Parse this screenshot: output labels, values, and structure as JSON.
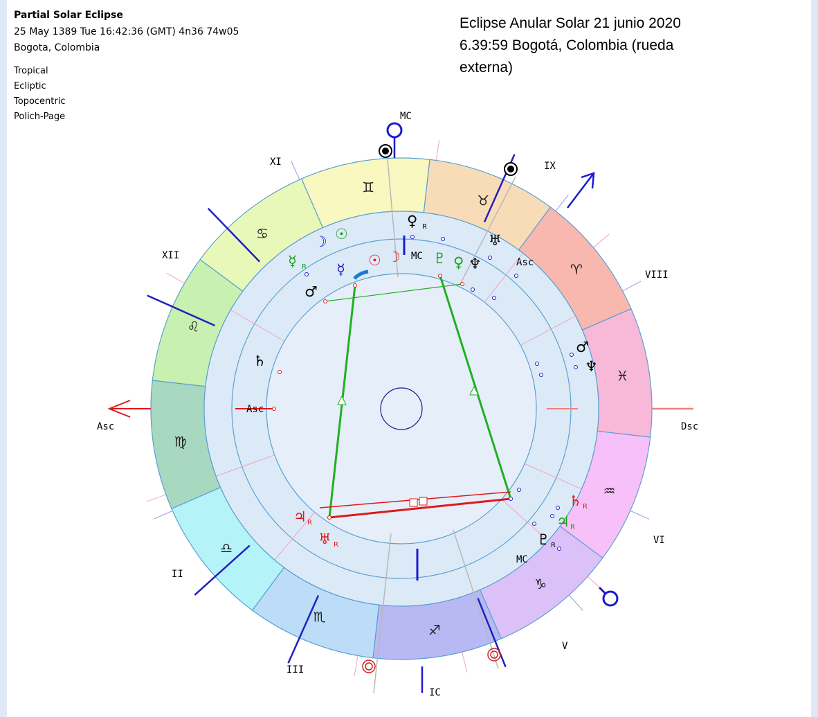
{
  "header": {
    "title": "Partial Solar Eclipse",
    "line1": "25 May 1389  Tue  16:42:36 (GMT) 4n36  74w05",
    "line2": "Bogota, Colombia",
    "settings": [
      "Tropical",
      "Ecliptic",
      "Topocentric",
      "Polich-Page"
    ]
  },
  "overlay_title": [
    "Eclipse Anular Solar 21 junio 2020",
    "6.39:59 Bogotá, Colombia (rueda",
    "externa)"
  ],
  "signs": [
    "♍",
    "♎",
    "♏",
    "♐",
    "♑",
    "♒",
    "♓",
    "♈",
    "♉",
    "♊",
    "♋",
    "♌"
  ],
  "houses": [
    "XI",
    "IX",
    "XII",
    "VIII",
    "II",
    "VI",
    "III",
    "V"
  ],
  "angles": {
    "asc": "Asc",
    "dsc": "Dsc",
    "mc": "MC",
    "ic": "IC"
  },
  "retrograde": "R",
  "planets": [
    "♀",
    "♅",
    "Asc",
    "♂",
    "♆",
    "☉",
    "☽",
    "☿",
    "♂",
    "☿",
    "☉",
    "☽",
    "MC",
    "♇",
    "♀",
    "♆",
    "♄",
    "Asc",
    "♃",
    "♅",
    "♄",
    "♃",
    "♇",
    "MC"
  ]
}
